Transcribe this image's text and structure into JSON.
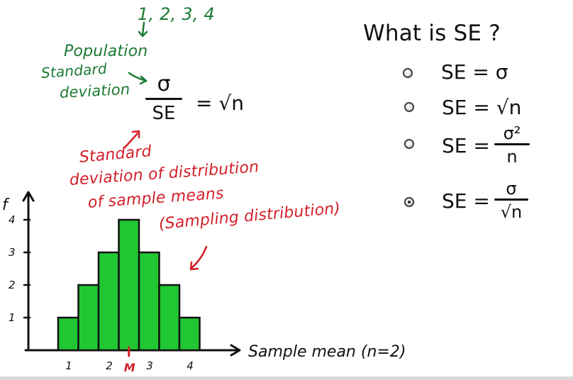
{
  "annotations": {
    "numbers_top": "1, 2, 3, 4",
    "population_line1": "Population",
    "population_line2": "Standard",
    "population_line3": "deviation",
    "sampling_line1": "Standard",
    "sampling_line2": "deviation of distribution",
    "sampling_line3": "of sample means",
    "sampling_line4": "(Sampling distribution)"
  },
  "formula_main": {
    "numerator": "σ",
    "denominator": "SE",
    "equals": "= √n"
  },
  "question": {
    "title": "What is SE ?",
    "options": [
      {
        "label": "SE = σ",
        "type": "inline",
        "selected": false
      },
      {
        "label": "SE = √n",
        "type": "inline",
        "selected": false
      },
      {
        "label_prefix": "SE =",
        "numerator": "σ²",
        "denominator": "n",
        "type": "fraction",
        "selected": false
      },
      {
        "label_prefix": "SE =",
        "numerator": "σ",
        "denominator": "√n",
        "type": "fraction",
        "selected": true
      }
    ]
  },
  "chart_data": {
    "type": "bar",
    "categories": [
      "1",
      "1.5",
      "2",
      "2.5",
      "3",
      "3.5",
      "4"
    ],
    "values": [
      1,
      2,
      3,
      4,
      3,
      2,
      1
    ],
    "xlabel": "Sample mean (n=2)",
    "ylabel": "f",
    "ylim": [
      0,
      4
    ],
    "x_tick_labels": [
      "1",
      "2",
      "3",
      "4"
    ],
    "y_tick_labels": [
      "1",
      "2",
      "3",
      "4"
    ],
    "marker_label": "M",
    "bar_color": "#20c733",
    "bar_edge_color": "#111111"
  },
  "colors": {
    "green_annotation": "#1d7a34",
    "red_annotation": "#d3202a",
    "ink": "#111111",
    "background": "#ffffff",
    "bar": "#20c733"
  }
}
